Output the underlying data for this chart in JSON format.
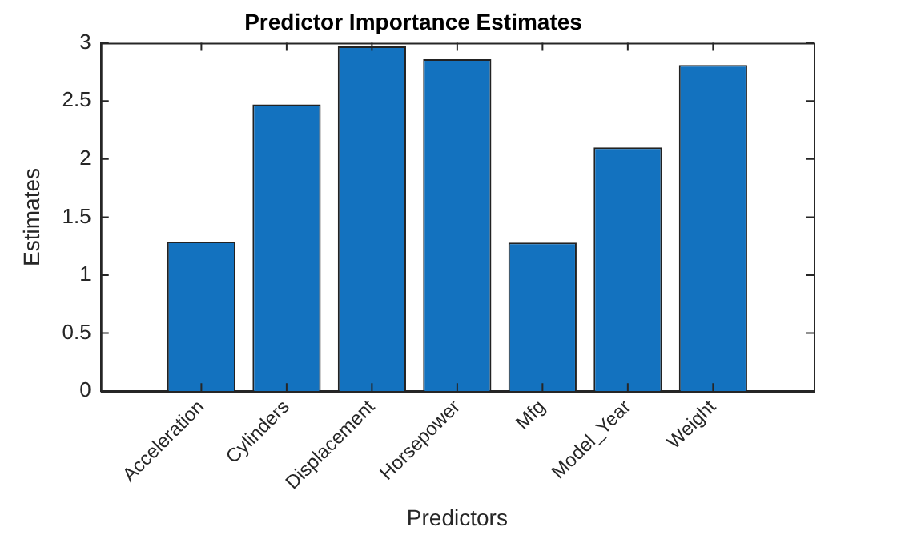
{
  "chart_data": {
    "type": "bar",
    "title": "Predictor Importance Estimates",
    "xlabel": "Predictors",
    "ylabel": "Estimates",
    "categories": [
      "Acceleration",
      "Cylinders",
      "Displacement",
      "Horsepower",
      "Mfg",
      "Model_Year",
      "Weight"
    ],
    "values": [
      1.29,
      2.47,
      2.97,
      2.86,
      1.28,
      2.1,
      2.81
    ],
    "color": "#1372bf",
    "ylim": [
      0,
      3
    ],
    "yticks": [
      0,
      0.5,
      1,
      1.5,
      2,
      2.5,
      3
    ],
    "grid": false,
    "legend": false
  }
}
